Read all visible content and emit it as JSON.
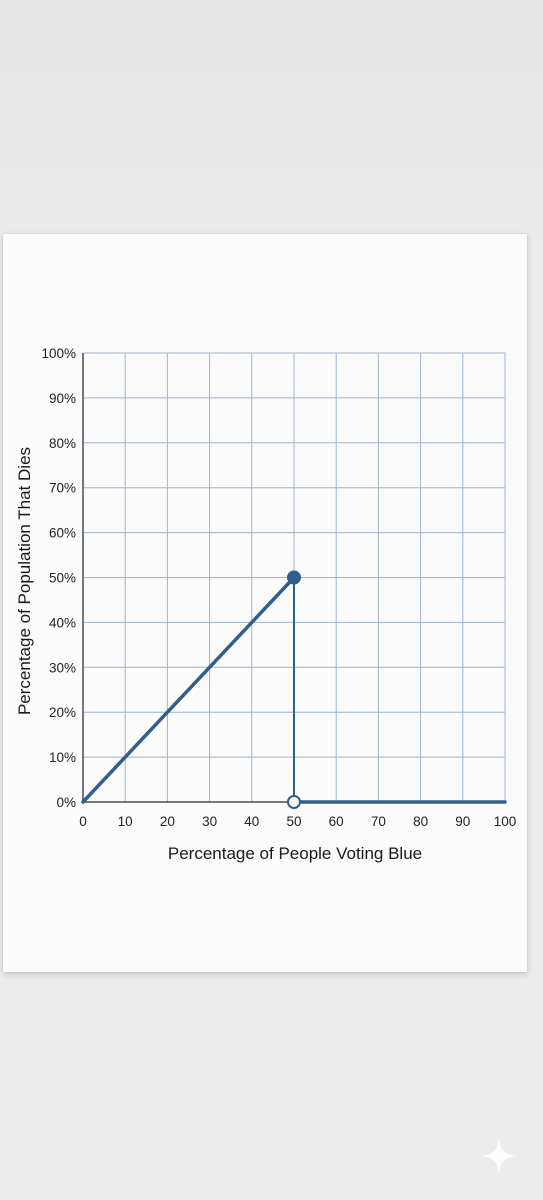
{
  "chart_data": {
    "type": "line",
    "xlabel": "Percentage of People Voting Blue",
    "ylabel": "Percentage of Population That Dies",
    "x_ticks": [
      0,
      10,
      20,
      30,
      40,
      50,
      60,
      70,
      80,
      90,
      100
    ],
    "x_tick_labels": [
      "0",
      "10",
      "20",
      "30",
      "40",
      "50",
      "60",
      "70",
      "80",
      "90",
      "100"
    ],
    "y_ticks": [
      0,
      10,
      20,
      30,
      40,
      50,
      60,
      70,
      80,
      90,
      100
    ],
    "y_tick_labels": [
      "0%",
      "10%",
      "20%",
      "30%",
      "40%",
      "50%",
      "60%",
      "70%",
      "80%",
      "90%",
      "100%"
    ],
    "xlim": [
      0,
      100
    ],
    "ylim": [
      0,
      100
    ],
    "grid": true,
    "line_color": "#2e5f8f",
    "grid_color": "#9fb4cc",
    "segments": [
      {
        "points": [
          [
            0,
            0
          ],
          [
            50,
            50
          ]
        ]
      },
      {
        "points": [
          [
            50,
            50
          ],
          [
            50,
            0
          ]
        ],
        "style": "thin-vertical"
      },
      {
        "points": [
          [
            50,
            0
          ],
          [
            100,
            0
          ]
        ]
      }
    ],
    "markers": [
      {
        "x": 50,
        "y": 50,
        "filled": true
      },
      {
        "x": 50,
        "y": 0,
        "filled": false
      }
    ]
  }
}
